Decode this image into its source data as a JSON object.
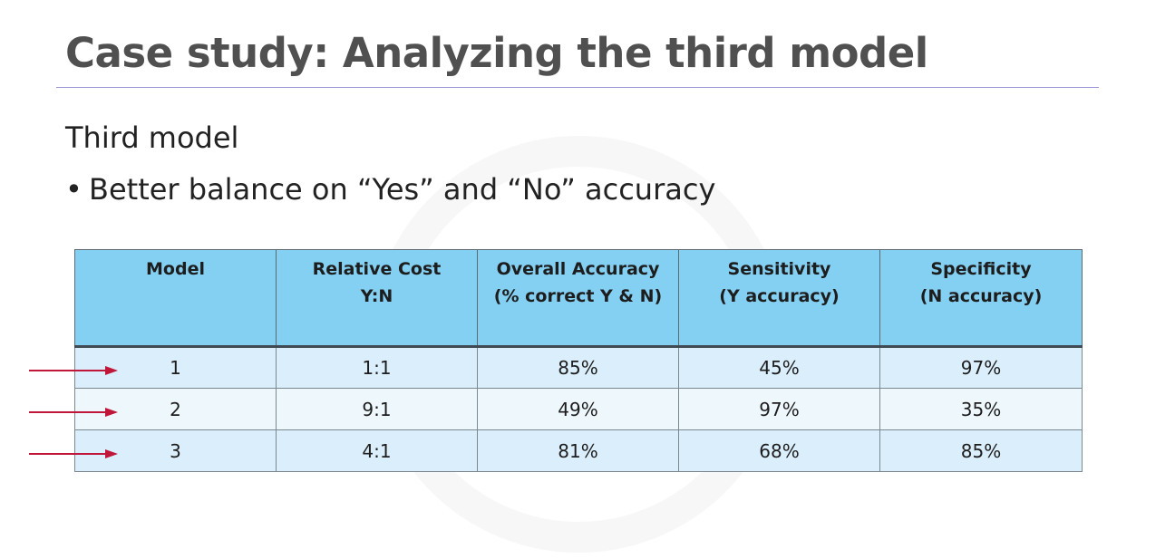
{
  "slide": {
    "title": "Case study: Analyzing the third model",
    "subtitle": "Third model",
    "bullet_symbol": "•",
    "bullet": "Better balance on “Yes” and “No” accuracy"
  },
  "table": {
    "headers": [
      [
        "Model"
      ],
      [
        "Relative Cost",
        "Y:N"
      ],
      [
        "Overall Accuracy",
        "(% correct Y & N)"
      ],
      [
        "Sensitivity",
        "(Y accuracy)"
      ],
      [
        "Specificity",
        "(N accuracy)"
      ]
    ],
    "rows": [
      [
        "1",
        "1:1",
        "85%",
        "45%",
        "97%"
      ],
      [
        "2",
        "9:1",
        "49%",
        "97%",
        "35%"
      ],
      [
        "3",
        "4:1",
        "81%",
        "68%",
        "85%"
      ]
    ]
  },
  "colors": {
    "header_fill": "#84d0f3",
    "row_fill_odd": "#dbeefb",
    "row_fill_even": "#eef7fc",
    "arrow": "#c0163a",
    "title_text": "#505050",
    "title_rule": "#9c95d6"
  },
  "icons": {
    "row_pointer": "right-arrow-icon"
  }
}
